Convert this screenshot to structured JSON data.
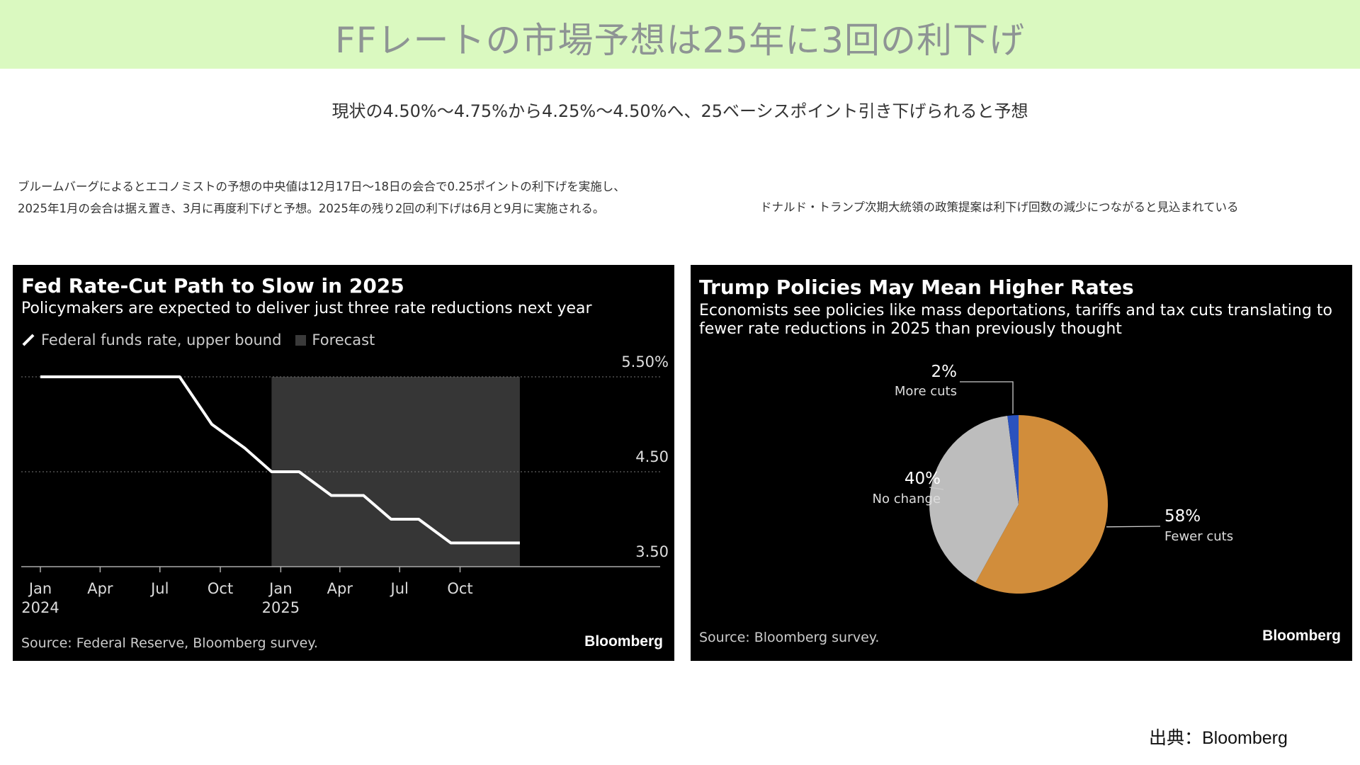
{
  "header": {
    "title": "FFレートの市場予想は25年に3回の利下げ",
    "bg_color": "#daf9c0"
  },
  "subtitle": "現状の4.50%〜4.75%から4.25%〜4.50%へ、25ベーシスポイント引き下げられると予想",
  "notes": {
    "left_line1": "ブルームバーグによるとエコノミストの予想の中央値は12月17日〜18日の会合で0.25ポイントの利下げを実施し、",
    "left_line2": "2025年1月の会合は据え置き、3月に再度利下げと予想。2025年の残り2回の利下げは6月と9月に実施される。",
    "right": "ドナルド・トランプ次期大統領の政策提案は利下げ回数の減少につながると見込まれている"
  },
  "credit": "出典：Bloomberg",
  "chart_data": [
    {
      "type": "line",
      "title": "Fed Rate-Cut Path to Slow in 2025",
      "subtitle": "Policymakers are expected to deliver just three rate reductions next year",
      "legend": [
        "Federal funds rate, upper bound",
        "Forecast"
      ],
      "source": "Source: Federal Reserve, Bloomberg survey.",
      "logo": "Bloomberg",
      "series": [
        {
          "name": "Federal funds rate, upper bound",
          "color": "#ffffff",
          "points": [
            {
              "x": "2024-01-01",
              "y": 5.5
            },
            {
              "x": "2024-07-31",
              "y": 5.5
            },
            {
              "x": "2024-09-18",
              "y": 5.0
            },
            {
              "x": "2024-11-07",
              "y": 4.75
            },
            {
              "x": "2024-12-18",
              "y": 4.5
            },
            {
              "x": "2025-01-29",
              "y": 4.5
            },
            {
              "x": "2025-03-19",
              "y": 4.25
            },
            {
              "x": "2025-05-07",
              "y": 4.25
            },
            {
              "x": "2025-06-18",
              "y": 4.0
            },
            {
              "x": "2025-07-30",
              "y": 4.0
            },
            {
              "x": "2025-09-17",
              "y": 3.75
            },
            {
              "x": "2025-12-31",
              "y": 3.75
            }
          ]
        }
      ],
      "forecast_range": [
        "2024-12-18",
        "2025-12-31"
      ],
      "forecast_color": "#363636",
      "x_ticks": [
        {
          "date": "2024-01-01",
          "label": "Jan",
          "label2": "2024"
        },
        {
          "date": "2024-04-01",
          "label": "Apr",
          "label2": ""
        },
        {
          "date": "2024-07-01",
          "label": "Jul",
          "label2": ""
        },
        {
          "date": "2024-10-01",
          "label": "Oct",
          "label2": ""
        },
        {
          "date": "2025-01-01",
          "label": "Jan",
          "label2": "2025"
        },
        {
          "date": "2025-04-01",
          "label": "Apr",
          "label2": ""
        },
        {
          "date": "2025-07-01",
          "label": "Jul",
          "label2": ""
        },
        {
          "date": "2025-10-01",
          "label": "Oct",
          "label2": ""
        }
      ],
      "y_ticks": [
        {
          "value": 5.5,
          "label": "5.50%"
        },
        {
          "value": 4.5,
          "label": "4.50"
        },
        {
          "value": 3.5,
          "label": "3.50"
        }
      ],
      "ylim": [
        3.5,
        5.5
      ],
      "grid": "horizontal dotted"
    },
    {
      "type": "pie",
      "title": "Trump Policies May Mean Higher Rates",
      "subtitle_line1": "Economists see policies like mass deportations, tariffs and tax cuts translating to",
      "subtitle_line2": "fewer rate reductions in 2025 than previously thought",
      "source": "Source: Bloomberg survey.",
      "logo": "Bloomberg",
      "slices": [
        {
          "label": "Fewer cuts",
          "value": 58,
          "pct_label": "58%",
          "color": "#d18d3b"
        },
        {
          "label": "No change",
          "value": 40,
          "pct_label": "40%",
          "color": "#bdbdbd"
        },
        {
          "label": "More cuts",
          "value": 2,
          "pct_label": "2%",
          "color": "#2a52be"
        }
      ]
    }
  ]
}
